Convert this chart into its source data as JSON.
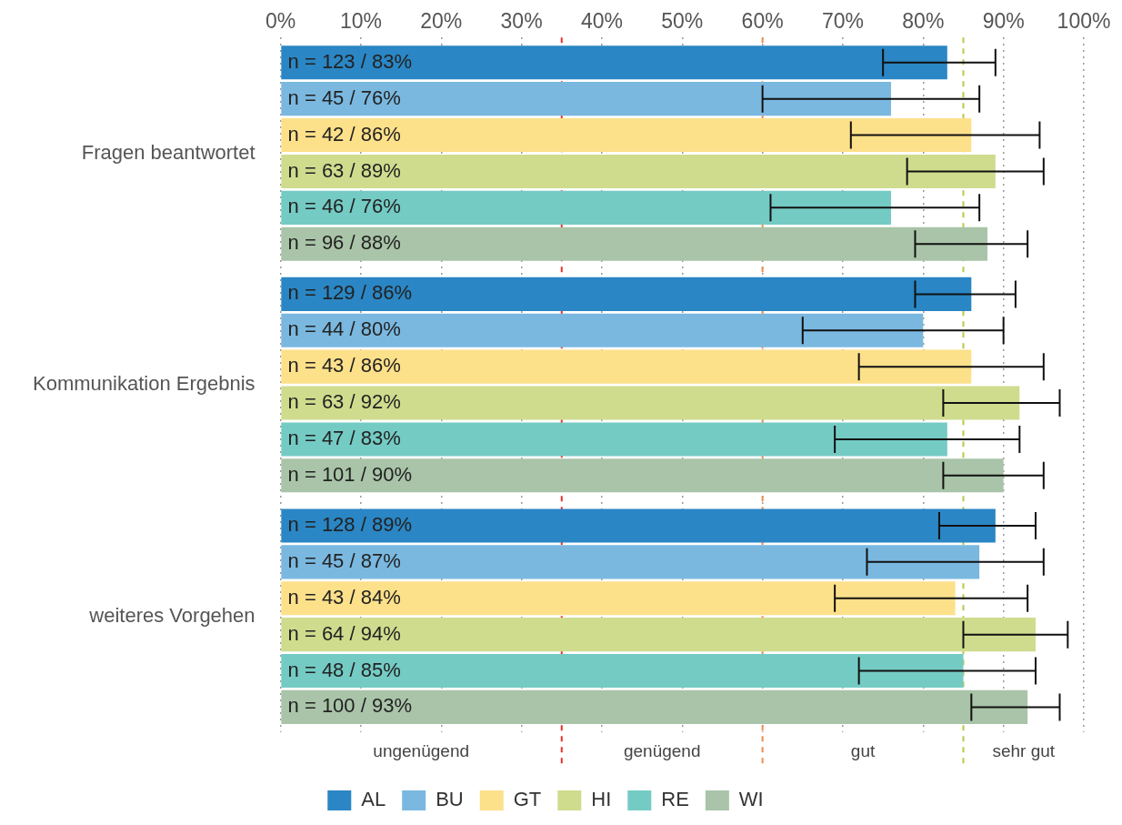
{
  "chart_data": {
    "type": "bar",
    "orientation": "horizontal",
    "categories": [
      "Fragen beantwortet",
      "Kommunikation Ergebnis",
      "weiteres Vorgehen"
    ],
    "series": [
      {
        "name": "AL",
        "color": "#2a86c4",
        "values": [
          83,
          86,
          89
        ],
        "errors": [
          [
            75,
            89
          ],
          [
            79,
            91.5
          ],
          [
            82,
            94
          ]
        ],
        "value_labels": [
          "n = 123 / 83%",
          "n = 129 / 86%",
          "n = 128 / 89%"
        ]
      },
      {
        "name": "BU",
        "color": "#7ab8e0",
        "values": [
          76,
          80,
          87
        ],
        "errors": [
          [
            60,
            87
          ],
          [
            65,
            90
          ],
          [
            73,
            95
          ]
        ],
        "value_labels": [
          "n = 45 / 76%",
          "n = 44 / 80%",
          "n = 45 / 87%"
        ]
      },
      {
        "name": "GT",
        "color": "#fde08a",
        "values": [
          86,
          86,
          84
        ],
        "errors": [
          [
            71,
            94.5
          ],
          [
            72,
            95
          ],
          [
            69,
            93
          ]
        ],
        "value_labels": [
          "n = 42 / 86%",
          "n = 43 / 86%",
          "n = 43 / 84%"
        ]
      },
      {
        "name": "HI",
        "color": "#cfdc8e",
        "values": [
          89,
          92,
          94
        ],
        "errors": [
          [
            78,
            95
          ],
          [
            82.5,
            97
          ],
          [
            85,
            98
          ]
        ],
        "value_labels": [
          "n = 63 / 89%",
          "n = 63 / 92%",
          "n = 64 / 94%"
        ]
      },
      {
        "name": "RE",
        "color": "#74cbc4",
        "values": [
          76,
          83,
          85
        ],
        "errors": [
          [
            61,
            87
          ],
          [
            69,
            92
          ],
          [
            72,
            94
          ]
        ],
        "value_labels": [
          "n = 46 / 76%",
          "n = 47 / 83%",
          "n = 48 / 85%"
        ]
      },
      {
        "name": "WI",
        "color": "#a9c4a8",
        "values": [
          88,
          90,
          93
        ],
        "errors": [
          [
            79,
            93
          ],
          [
            82.5,
            95
          ],
          [
            86,
            97
          ]
        ],
        "value_labels": [
          "n = 96 / 88%",
          "n = 101 / 90%",
          "n = 100 / 93%"
        ]
      }
    ],
    "xlim": [
      0,
      100
    ],
    "xticks": [
      {
        "value": 0,
        "label": "0%"
      },
      {
        "value": 10,
        "label": "10%"
      },
      {
        "value": 20,
        "label": "20%"
      },
      {
        "value": 30,
        "label": "30%"
      },
      {
        "value": 40,
        "label": "40%"
      },
      {
        "value": 50,
        "label": "50%"
      },
      {
        "value": 60,
        "label": "60%"
      },
      {
        "value": 70,
        "label": "70%"
      },
      {
        "value": 80,
        "label": "80%"
      },
      {
        "value": 90,
        "label": "90%"
      },
      {
        "value": 100,
        "label": "100%"
      }
    ],
    "ref_lines": [
      {
        "axis": "x",
        "value": 35,
        "color": "#e8302a",
        "line_style": "dashed"
      },
      {
        "axis": "x",
        "value": 60,
        "color": "#f08a4b",
        "line_style": "dashed"
      },
      {
        "axis": "x",
        "value": 85,
        "color": "#b5c94a",
        "line_style": "dashed"
      }
    ],
    "annotations": [
      "ungenügend",
      "genügend",
      "gut",
      "sehr gut"
    ],
    "grid": "x",
    "legend": "bottom"
  }
}
